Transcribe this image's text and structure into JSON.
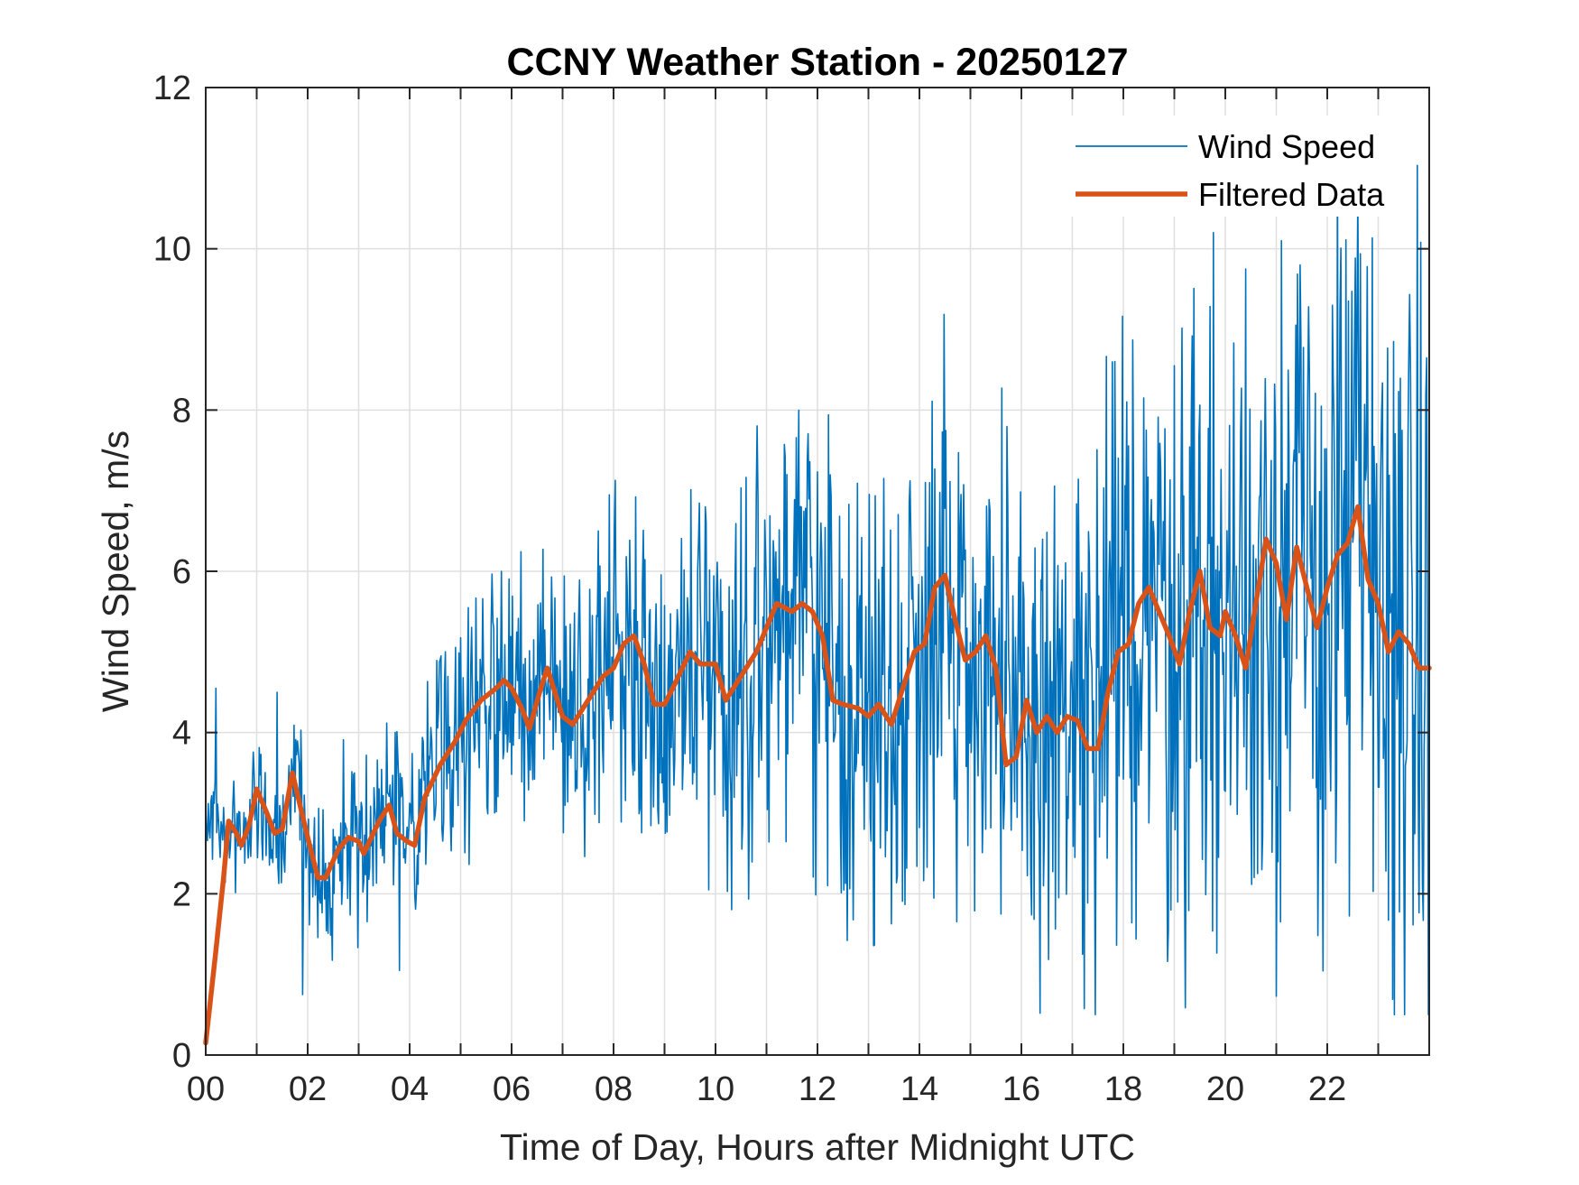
{
  "chart_data": {
    "type": "line",
    "title": "CCNY Weather Station - 20250127",
    "xlabel": "Time of Day, Hours after Midnight UTC",
    "ylabel": "Wind Speed, m/s",
    "xlim": [
      0,
      24
    ],
    "ylim": [
      0,
      12
    ],
    "grid": true,
    "legend_position": "top-right",
    "x_ticks": [
      0,
      2,
      4,
      6,
      8,
      10,
      12,
      14,
      16,
      18,
      20,
      22
    ],
    "x_tick_labels": [
      "00",
      "02",
      "04",
      "06",
      "08",
      "10",
      "12",
      "14",
      "16",
      "18",
      "20",
      "22"
    ],
    "x_minor_grid_step_hours": 1,
    "y_ticks": [
      0,
      2,
      4,
      6,
      8,
      10,
      12
    ],
    "y_tick_labels": [
      "0",
      "2",
      "4",
      "6",
      "8",
      "10",
      "12"
    ],
    "series": [
      {
        "name": "Wind Speed",
        "color": "#0072BD",
        "style": "thin",
        "description": "Raw 1-minute wind speed, noisy; approximate envelope shown by min/max and key spikes",
        "sample_interval_hours": 0.0166667,
        "notable_points": [
          {
            "x": 0.2,
            "y": 4.55
          },
          {
            "x": 1.4,
            "y": 4.5
          },
          {
            "x": 1.9,
            "y": 0.75
          },
          {
            "x": 3.8,
            "y": 1.05
          },
          {
            "x": 5.8,
            "y": 6.0
          },
          {
            "x": 7.7,
            "y": 6.5
          },
          {
            "x": 9.8,
            "y": 6.8
          },
          {
            "x": 10.8,
            "y": 6.95
          },
          {
            "x": 11.4,
            "y": 7.2
          },
          {
            "x": 14.2,
            "y": 7.1
          },
          {
            "x": 15.6,
            "y": 1.75
          },
          {
            "x": 17.2,
            "y": 1.25
          },
          {
            "x": 18.4,
            "y": 8.15
          },
          {
            "x": 19.0,
            "y": 8.55
          },
          {
            "x": 20.4,
            "y": 9.75
          },
          {
            "x": 21.1,
            "y": 10.1
          },
          {
            "x": 22.1,
            "y": 9.3
          },
          {
            "x": 23.3,
            "y": 8.85
          },
          {
            "x": 24.0,
            "y": 2.45
          }
        ]
      },
      {
        "name": "Filtered Data",
        "color": "#D95319",
        "style": "thick",
        "x": [
          0.0,
          0.2,
          0.35,
          0.45,
          0.6,
          0.7,
          0.85,
          1.0,
          1.2,
          1.35,
          1.5,
          1.7,
          1.85,
          2.0,
          2.2,
          2.35,
          2.6,
          2.8,
          3.0,
          3.1,
          3.4,
          3.6,
          3.75,
          3.95,
          4.1,
          4.3,
          4.6,
          4.9,
          5.1,
          5.4,
          5.7,
          5.85,
          6.0,
          6.2,
          6.35,
          6.55,
          6.7,
          6.85,
          7.0,
          7.2,
          7.5,
          7.8,
          8.0,
          8.2,
          8.4,
          8.6,
          8.8,
          9.0,
          9.2,
          9.5,
          9.7,
          10.0,
          10.2,
          10.5,
          10.8,
          11.0,
          11.2,
          11.5,
          11.7,
          11.9,
          12.1,
          12.3,
          12.5,
          12.8,
          13.0,
          13.2,
          13.45,
          13.7,
          13.9,
          14.1,
          14.3,
          14.5,
          14.7,
          14.9,
          15.1,
          15.3,
          15.5,
          15.7,
          15.9,
          16.1,
          16.3,
          16.5,
          16.7,
          16.9,
          17.1,
          17.3,
          17.5,
          17.7,
          17.9,
          18.1,
          18.3,
          18.5,
          18.7,
          18.9,
          19.1,
          19.3,
          19.5,
          19.7,
          19.9,
          20.0,
          20.2,
          20.4,
          20.6,
          20.8,
          21.0,
          21.2,
          21.4,
          21.6,
          21.8,
          22.0,
          22.2,
          22.4,
          22.6,
          22.8,
          23.0,
          23.2,
          23.4,
          23.6,
          23.8,
          24.0
        ],
        "values": [
          0.15,
          1.3,
          2.2,
          2.9,
          2.75,
          2.6,
          2.85,
          3.3,
          3.0,
          2.75,
          2.8,
          3.5,
          3.1,
          2.7,
          2.2,
          2.2,
          2.55,
          2.7,
          2.65,
          2.5,
          2.9,
          3.1,
          2.75,
          2.65,
          2.6,
          3.2,
          3.6,
          3.9,
          4.15,
          4.4,
          4.55,
          4.65,
          4.55,
          4.3,
          4.05,
          4.5,
          4.8,
          4.5,
          4.2,
          4.1,
          4.4,
          4.7,
          4.8,
          5.1,
          5.2,
          4.85,
          4.35,
          4.35,
          4.6,
          5.0,
          4.85,
          4.85,
          4.4,
          4.7,
          5.0,
          5.3,
          5.6,
          5.5,
          5.6,
          5.5,
          5.2,
          4.4,
          4.35,
          4.3,
          4.2,
          4.35,
          4.1,
          4.6,
          5.0,
          5.1,
          5.8,
          5.95,
          5.4,
          4.9,
          5.0,
          5.2,
          4.8,
          3.6,
          3.7,
          4.4,
          4.0,
          4.2,
          4.0,
          4.2,
          4.15,
          3.8,
          3.8,
          4.5,
          5.0,
          5.1,
          5.6,
          5.8,
          5.5,
          5.2,
          4.85,
          5.5,
          6.0,
          5.3,
          5.2,
          5.5,
          5.2,
          4.8,
          5.6,
          6.4,
          6.1,
          5.4,
          6.3,
          5.8,
          5.3,
          5.8,
          6.2,
          6.35,
          6.8,
          5.9,
          5.6,
          5.0,
          5.25,
          5.1,
          4.8,
          4.8
        ]
      }
    ]
  }
}
